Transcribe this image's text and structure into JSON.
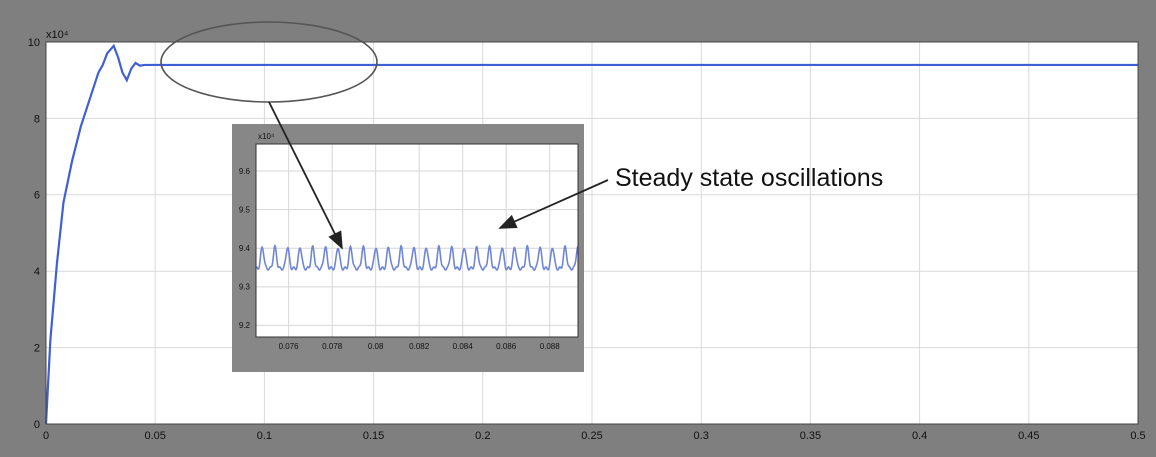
{
  "chart_data": [
    {
      "type": "line",
      "exponent_label": "x10⁴",
      "xlim": [
        0,
        0.5
      ],
      "ylim": [
        0,
        10
      ],
      "x_ticks": [
        0,
        0.05,
        0.1,
        0.15,
        0.2,
        0.25,
        0.3,
        0.35,
        0.4,
        0.45,
        0.5
      ],
      "x_tick_labels": [
        "0",
        "0.05",
        "0.1",
        "0.15",
        "0.2",
        "0.25",
        "0.3",
        "0.35",
        "0.4",
        "0.45",
        "0.5"
      ],
      "y_ticks": [
        0,
        2,
        4,
        6,
        8,
        10
      ],
      "y_tick_labels": [
        "0",
        "2",
        "4",
        "6",
        "8",
        "10"
      ],
      "grid": true,
      "series": [
        {
          "color": "#3f5fd6",
          "x": [
            0,
            0.002,
            0.005,
            0.008,
            0.012,
            0.016,
            0.02,
            0.024,
            0.026,
            0.028,
            0.031,
            0.033,
            0.035,
            0.037,
            0.039,
            0.041,
            0.043,
            0.045,
            0.05,
            0.1,
            0.2,
            0.3,
            0.4,
            0.5
          ],
          "y": [
            0,
            2.2,
            4.2,
            5.8,
            6.9,
            7.8,
            8.5,
            9.2,
            9.4,
            9.7,
            9.9,
            9.6,
            9.2,
            9.0,
            9.3,
            9.45,
            9.38,
            9.4,
            9.4,
            9.4,
            9.4,
            9.4,
            9.4,
            9.4
          ]
        }
      ]
    },
    {
      "type": "line",
      "exponent_label": "x10⁴",
      "xlim": [
        0.0745,
        0.0893
      ],
      "ylim": [
        9.17,
        9.67
      ],
      "x_ticks": [
        0.076,
        0.078,
        0.08,
        0.082,
        0.084,
        0.086,
        0.088
      ],
      "x_tick_labels": [
        "0.076",
        "0.078",
        "0.08",
        "0.082",
        "0.084",
        "0.086",
        "0.088"
      ],
      "y_ticks": [
        9.2,
        9.3,
        9.4,
        9.5,
        9.6
      ],
      "y_tick_labels": [
        "9.2",
        "9.3",
        "9.4",
        "9.5",
        "9.6"
      ],
      "grid": true,
      "series": [
        {
          "color": "#6f86d8",
          "mean": 9.37,
          "amplitude": 0.025,
          "period": 0.00058
        }
      ]
    }
  ],
  "annotations": {
    "steady_state": "Steady state oscillations"
  }
}
